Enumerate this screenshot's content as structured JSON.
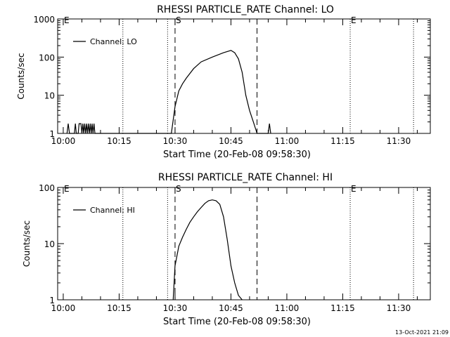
{
  "footer_timestamp": "13-Oct-2021 21:09",
  "chart_data": [
    {
      "type": "line",
      "title": "RHESSI PARTICLE_RATE Channel: LO",
      "xlabel": "Start Time (20-Feb-08 09:58:30)",
      "ylabel": "Counts/sec",
      "yscale": "log",
      "ylim": [
        1,
        1000
      ],
      "xlim": [
        "09:58:30",
        "11:38:30"
      ],
      "xticks": [
        "10:00",
        "10:15",
        "10:30",
        "10:45",
        "11:00",
        "11:15",
        "11:30"
      ],
      "yticks": [
        "1",
        "10",
        "100",
        "1000"
      ],
      "legend": {
        "label": "Channel: LO",
        "position": "top-left"
      },
      "markers": [
        {
          "label": "E",
          "time": "10:00"
        },
        {
          "label": "S",
          "time": "10:30"
        },
        {
          "label": "E",
          "time": "11:17"
        }
      ],
      "dashed_lines": [
        "10:30",
        "10:52"
      ],
      "dotted_lines": [
        "10:16",
        "10:28",
        "11:17",
        "11:34"
      ],
      "series": [
        {
          "color": "#000000",
          "x": [
            "10:01",
            "10:01:20",
            "10:01:40",
            "10:03",
            "10:03:15",
            "10:03:30",
            "10:04",
            "10:04:15",
            "10:04:45",
            "10:05",
            "10:05:15",
            "10:05:30",
            "10:05:45",
            "10:06",
            "10:06:15",
            "10:06:30",
            "10:06:45",
            "10:07",
            "10:07:15",
            "10:07:30",
            "10:07:45",
            "10:08",
            "10:08:15",
            "10:08:30",
            "10:29",
            "10:30",
            "10:31",
            "10:32",
            "10:33",
            "10:35",
            "10:37",
            "10:40",
            "10:43",
            "10:45",
            "10:46",
            "10:47",
            "10:48",
            "10:49",
            "10:50",
            "10:51",
            "10:52",
            "10:55",
            "10:55:20",
            "10:55:40"
          ],
          "y": [
            1,
            1.8,
            1,
            1,
            1.8,
            1,
            1,
            1.8,
            1.8,
            1,
            1.8,
            1,
            1.8,
            1,
            1.8,
            1,
            1.8,
            1,
            1.8,
            1,
            1.8,
            1,
            1.8,
            1,
            1,
            5,
            13,
            20,
            28,
            50,
            75,
            100,
            130,
            150,
            130,
            90,
            40,
            10,
            4,
            2,
            1,
            1,
            1.8,
            1
          ]
        }
      ]
    },
    {
      "type": "line",
      "title": "RHESSI PARTICLE_RATE Channel: HI",
      "xlabel": "Start Time (20-Feb-08 09:58:30)",
      "ylabel": "Counts/sec",
      "yscale": "log",
      "ylim": [
        1,
        100
      ],
      "xlim": [
        "09:58:30",
        "11:38:30"
      ],
      "xticks": [
        "10:00",
        "10:15",
        "10:30",
        "10:45",
        "11:00",
        "11:15",
        "11:30"
      ],
      "yticks": [
        "1",
        "10",
        "100"
      ],
      "legend": {
        "label": "Channel: HI",
        "position": "top-left"
      },
      "markers": [
        {
          "label": "E",
          "time": "10:00"
        },
        {
          "label": "S",
          "time": "10:30"
        },
        {
          "label": "E",
          "time": "11:17"
        }
      ],
      "dashed_lines": [
        "10:30",
        "10:52"
      ],
      "dotted_lines": [
        "10:16",
        "10:28",
        "11:17",
        "11:34"
      ],
      "series": [
        {
          "color": "#000000",
          "x": [
            "10:29:30",
            "10:30",
            "10:31",
            "10:32",
            "10:33",
            "10:34",
            "10:35",
            "10:36",
            "10:37",
            "10:38",
            "10:39",
            "10:40",
            "10:41",
            "10:42",
            "10:43",
            "10:44",
            "10:45",
            "10:46",
            "10:47",
            "10:48"
          ],
          "y": [
            1,
            4,
            9,
            13,
            18,
            24,
            30,
            37,
            44,
            52,
            58,
            60,
            58,
            50,
            30,
            12,
            4,
            2,
            1.2,
            1
          ]
        }
      ]
    }
  ]
}
